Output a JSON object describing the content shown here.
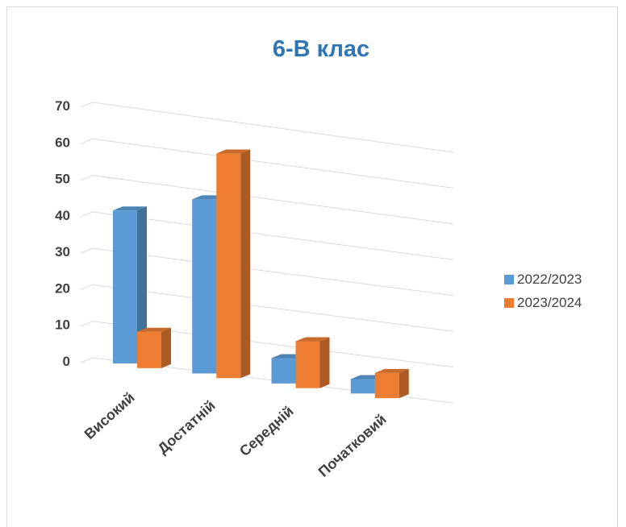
{
  "chart_data": {
    "type": "bar",
    "title": "6-В клас",
    "categories": [
      "Високий",
      "Достатній",
      "Середній",
      "Початковий"
    ],
    "series": [
      {
        "name": "2022/2023",
        "values": [
          42,
          48,
          7,
          4
        ],
        "color": "#5b9bd5"
      },
      {
        "name": "2023/2024",
        "values": [
          10,
          62,
          13,
          7
        ],
        "color": "#ed7d31"
      }
    ],
    "yticks": [
      "0",
      "10",
      "20",
      "30",
      "40",
      "50",
      "60",
      "70"
    ],
    "ylim": [
      0,
      70
    ],
    "grid": true,
    "legend_position": "right",
    "style": "3d-clustered-column"
  }
}
